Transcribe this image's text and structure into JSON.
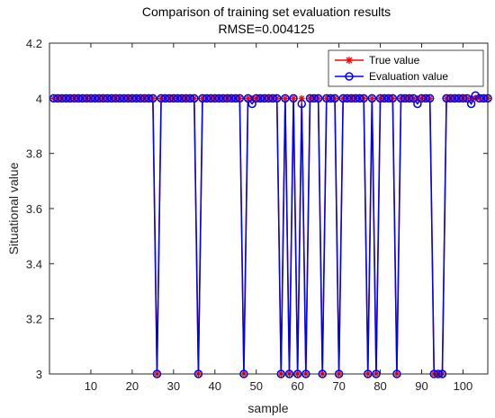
{
  "chart_data": {
    "type": "line",
    "title": "Comparison of training set evaluation results",
    "subtitle": "RMSE=0.004125",
    "xlabel": "sample",
    "ylabel": "Situational value",
    "xlim": [
      0,
      106
    ],
    "ylim": [
      3,
      4.2
    ],
    "xticks": [
      10,
      20,
      30,
      40,
      50,
      60,
      70,
      80,
      90,
      100
    ],
    "yticks": [
      3,
      3.2,
      3.4,
      3.6,
      3.8,
      4,
      4.2
    ],
    "xtick_labels": [
      "10",
      "20",
      "30",
      "40",
      "50",
      "60",
      "70",
      "80",
      "90",
      "100"
    ],
    "ytick_labels": [
      "3",
      "3.2",
      "3.4",
      "3.6",
      "3.8",
      "4",
      "4.2"
    ],
    "grid": false,
    "legend_position": "top-right",
    "x_range": [
      1,
      106
    ],
    "series": [
      {
        "name": "True value",
        "color": "#ff0000",
        "marker": "asterisk",
        "low_samples": [
          26,
          36,
          47,
          56,
          58,
          60,
          62,
          66,
          70,
          77,
          79,
          84,
          93,
          94,
          95
        ],
        "low_value": 3,
        "high_value": 4
      },
      {
        "name": "Evaluation value",
        "color": "#0000ff",
        "marker": "circle",
        "low_samples": [
          26,
          36,
          47,
          56,
          58,
          60,
          62,
          66,
          70,
          77,
          79,
          84,
          93,
          94,
          95
        ],
        "low_value": 3,
        "high_value": 4,
        "deviations": [
          [
            49,
            3.98
          ],
          [
            61,
            3.98
          ],
          [
            89,
            3.98
          ],
          [
            102,
            3.98
          ],
          [
            103,
            4.01
          ]
        ]
      }
    ]
  }
}
